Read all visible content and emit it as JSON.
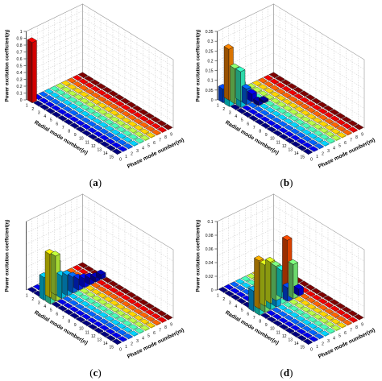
{
  "chart_data": [
    {
      "panel": "a",
      "type": "bar3d",
      "caption_letter": "a",
      "zlabel": "Power excitation coefficient(η)",
      "xlabel": "Radial mode number(n)",
      "ylabel": "Phase mode number(m)",
      "zlim": [
        0,
        1
      ],
      "zticks": [
        "0",
        "0.1",
        "0.2",
        "0.3",
        "0.4",
        "0.5",
        "0.6",
        "0.7",
        "0.8",
        "0.9",
        "1"
      ],
      "n_ticks": [
        "1",
        "2",
        "3",
        "4",
        "5",
        "6",
        "7",
        "8",
        "9",
        "10",
        "11",
        "12",
        "13",
        "14",
        "15"
      ],
      "m_ticks": [
        "0",
        "1",
        "2",
        "3",
        "4",
        "5",
        "6",
        "7",
        "8",
        "9"
      ],
      "bars": [
        {
          "n": 1,
          "m": 0,
          "value": 0.88
        }
      ]
    },
    {
      "panel": "b",
      "type": "bar3d",
      "caption_letter": "b",
      "zlabel": "Power excitation coefficient(η)",
      "xlabel": "Radial mode number(n)",
      "ylabel": "Phase mode number(m)",
      "zlim": [
        0,
        0.35
      ],
      "zticks": [
        "0",
        "0.05",
        "0.1",
        "0.15",
        "0.2",
        "0.25",
        "0.3",
        "0.35"
      ],
      "n_ticks": [
        "1",
        "2",
        "3",
        "4",
        "5",
        "6",
        "7",
        "8",
        "9",
        "10",
        "11",
        "12",
        "13",
        "14",
        "15"
      ],
      "m_ticks": [
        "0",
        "1",
        "2",
        "3",
        "4",
        "5",
        "6",
        "7",
        "8",
        "9"
      ],
      "bars": [
        {
          "n": 1,
          "m": 0,
          "value": 0.07
        },
        {
          "n": 2,
          "m": 0,
          "value": 0.13
        },
        {
          "n": 1,
          "m": 1,
          "value": 0.26
        },
        {
          "n": 2,
          "m": 1,
          "value": 0.18
        },
        {
          "n": 3,
          "m": 1,
          "value": 0.12
        },
        {
          "n": 2,
          "m": 2,
          "value": 0.15
        },
        {
          "n": 3,
          "m": 2,
          "value": 0.08
        },
        {
          "n": 3,
          "m": 3,
          "value": 0.04
        },
        {
          "n": 4,
          "m": 3,
          "value": 0.02
        },
        {
          "n": 4,
          "m": 4,
          "value": 0.01
        }
      ]
    },
    {
      "panel": "c",
      "type": "bar3d",
      "caption_letter": "c",
      "zlabel": "Power excitation coefficient(η)",
      "xlabel": "Radial mode number(n)",
      "ylabel": "Phase mode number(m)",
      "zlim": [
        0,
        0.3
      ],
      "zticks": [],
      "n_ticks": [
        "1",
        "2",
        "3",
        "4",
        "5",
        "6",
        "7",
        "8",
        "9",
        "10",
        "11",
        "12",
        "13",
        "14",
        "15"
      ],
      "m_ticks": [
        "0",
        "1",
        "2",
        "3",
        "4",
        "5",
        "6",
        "7",
        "8",
        "9"
      ],
      "bars": [
        {
          "n": 3,
          "m": 0,
          "value": 0.1
        },
        {
          "n": 4,
          "m": 0,
          "value": 0.13
        },
        {
          "n": 3,
          "m": 1,
          "value": 0.19
        },
        {
          "n": 4,
          "m": 1,
          "value": 0.17
        },
        {
          "n": 3,
          "m": 2,
          "value": 0.17
        },
        {
          "n": 4,
          "m": 2,
          "value": 0.1
        },
        {
          "n": 4,
          "m": 3,
          "value": 0.09
        },
        {
          "n": 4,
          "m": 4,
          "value": 0.07
        },
        {
          "n": 4,
          "m": 5,
          "value": 0.05
        },
        {
          "n": 4,
          "m": 6,
          "value": 0.04
        },
        {
          "n": 4,
          "m": 7,
          "value": 0.03
        },
        {
          "n": 4,
          "m": 8,
          "value": 0.02
        },
        {
          "n": 4,
          "m": 9,
          "value": 0.02
        }
      ]
    },
    {
      "panel": "d",
      "type": "bar3d",
      "caption_letter": "d",
      "zlabel": "Power excitation coefficient(η)",
      "xlabel": "Radial mode number(n)",
      "ylabel": "Phase mode number(m)",
      "zlim": [
        0,
        0.1
      ],
      "zticks": [
        "0",
        "0.02",
        "0.04",
        "0.06",
        "0.08",
        "0.1"
      ],
      "n_ticks": [
        "1",
        "2",
        "3",
        "4",
        "5",
        "6",
        "7",
        "8",
        "9",
        "10",
        "11",
        "12",
        "13",
        "14",
        "15"
      ],
      "m_ticks": [
        "0",
        "1",
        "2",
        "3",
        "4",
        "5",
        "6",
        "7",
        "8",
        "9"
      ],
      "bars": [
        {
          "n": 6,
          "m": 0,
          "value": 0.03
        },
        {
          "n": 7,
          "m": 0,
          "value": 0.04
        },
        {
          "n": 6,
          "m": 1,
          "value": 0.07
        },
        {
          "n": 7,
          "m": 1,
          "value": 0.05
        },
        {
          "n": 6,
          "m": 2,
          "value": 0.06
        },
        {
          "n": 7,
          "m": 2,
          "value": 0.04
        },
        {
          "n": 6,
          "m": 3,
          "value": 0.06
        },
        {
          "n": 7,
          "m": 3,
          "value": 0.03
        },
        {
          "n": 6,
          "m": 4,
          "value": 0.05
        },
        {
          "n": 6,
          "m": 5,
          "value": 0.04
        },
        {
          "n": 6,
          "m": 6,
          "value": 0.08
        },
        {
          "n": 7,
          "m": 6,
          "value": 0.05
        },
        {
          "n": 7,
          "m": 5,
          "value": 0.02
        },
        {
          "n": 7,
          "m": 7,
          "value": 0.01
        }
      ]
    }
  ]
}
